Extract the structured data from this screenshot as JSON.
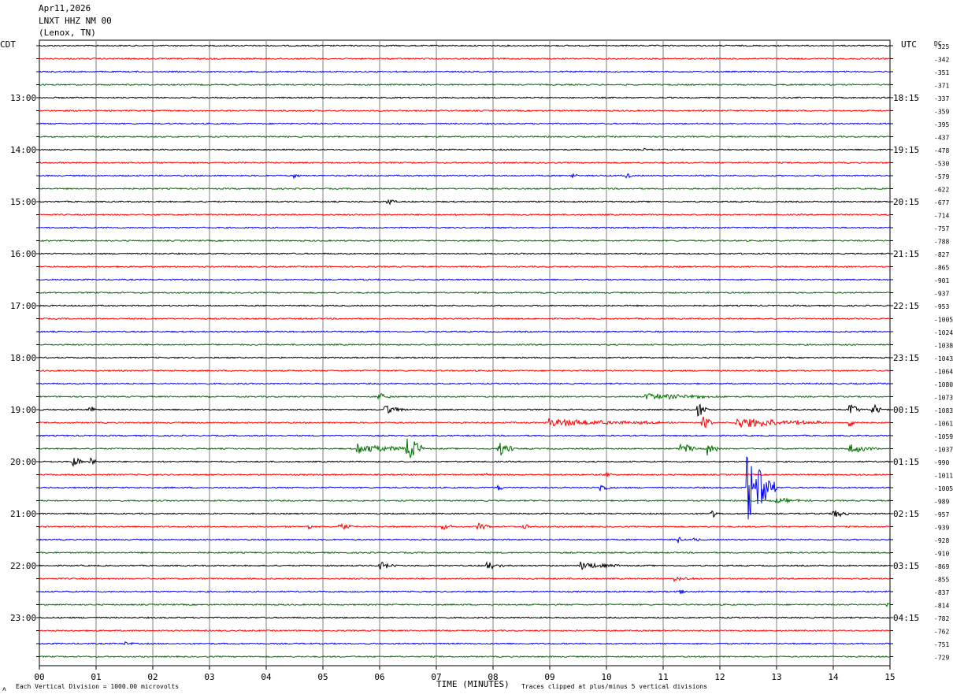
{
  "header": {
    "date": "Apr11,2026",
    "station": "LNXT HHZ NM 00",
    "location": "(Lenox, TN)"
  },
  "left_timezone": "CDT",
  "right_timezone": "UTC",
  "dc_label": "DC",
  "footer": {
    "scale_note": "Each Vertical Division = 1000.00 microvolts",
    "clip_note": "Traces clipped at plus/minus 5 vertical divisions",
    "marker": "ʌ"
  },
  "trace_colors": [
    "#000000",
    "#ff0000",
    "#0000ff",
    "#007000"
  ],
  "chart_data": {
    "type": "line",
    "xlabel": "TIME (MINUTES)",
    "x_ticks": [
      "00",
      "01",
      "02",
      "03",
      "04",
      "05",
      "06",
      "07",
      "08",
      "09",
      "10",
      "11",
      "12",
      "13",
      "14",
      "15"
    ],
    "xlim": [
      0,
      15
    ],
    "left_time_labels": [
      {
        "row": 4,
        "label": "13:00"
      },
      {
        "row": 8,
        "label": "14:00"
      },
      {
        "row": 12,
        "label": "15:00"
      },
      {
        "row": 16,
        "label": "16:00"
      },
      {
        "row": 20,
        "label": "17:00"
      },
      {
        "row": 24,
        "label": "18:00"
      },
      {
        "row": 28,
        "label": "19:00"
      },
      {
        "row": 32,
        "label": "20:00"
      },
      {
        "row": 36,
        "label": "21:00"
      },
      {
        "row": 40,
        "label": "22:00"
      },
      {
        "row": 44,
        "label": "23:00"
      }
    ],
    "right_time_labels": [
      {
        "row": 4,
        "label": "18:15"
      },
      {
        "row": 8,
        "label": "19:15"
      },
      {
        "row": 12,
        "label": "20:15"
      },
      {
        "row": 16,
        "label": "21:15"
      },
      {
        "row": 20,
        "label": "22:15"
      },
      {
        "row": 24,
        "label": "23:15"
      },
      {
        "row": 28,
        "label": "00:15"
      },
      {
        "row": 32,
        "label": "01:15"
      },
      {
        "row": 36,
        "label": "02:15"
      },
      {
        "row": 40,
        "label": "03:15"
      },
      {
        "row": 44,
        "label": "04:15"
      }
    ],
    "dc_offsets": [
      "-325",
      "-342",
      "-351",
      "-371",
      "-337",
      "-359",
      "-395",
      "-437",
      "-478",
      "-530",
      "-579",
      "-622",
      "-677",
      "-714",
      "-757",
      "-788",
      "-827",
      "-865",
      "-901",
      "-937",
      "-953",
      "-1005",
      "-1024",
      "-1038",
      "-1043",
      "-1064",
      "-1080",
      "-1073",
      "-1083",
      "-1061",
      "-1059",
      "-1037",
      "-990",
      "-1011",
      "-1005",
      "-989",
      "-957",
      "-939",
      "-928",
      "-910",
      "-869",
      "-855",
      "-837",
      "-814",
      "-782",
      "-762",
      "-751",
      "-729"
    ],
    "events": [
      {
        "row": 10,
        "minute": 4.5,
        "amp": 3,
        "dur": 0.1
      },
      {
        "row": 10,
        "minute": 9.4,
        "amp": 3,
        "dur": 0.1
      },
      {
        "row": 10,
        "minute": 10.35,
        "amp": 4,
        "dur": 0.1
      },
      {
        "row": 8,
        "minute": 10.65,
        "amp": 2,
        "dur": 0.05
      },
      {
        "row": 12,
        "minute": 6.15,
        "amp": 4,
        "dur": 0.15
      },
      {
        "row": 27,
        "minute": 6.0,
        "amp": 5,
        "dur": 0.2
      },
      {
        "row": 27,
        "minute": 10.7,
        "amp": 4,
        "dur": 1.5
      },
      {
        "row": 28,
        "minute": 0.9,
        "amp": 4,
        "dur": 0.1
      },
      {
        "row": 28,
        "minute": 6.1,
        "amp": 6,
        "dur": 0.4
      },
      {
        "row": 28,
        "minute": 11.6,
        "amp": 9,
        "dur": 0.2
      },
      {
        "row": 28,
        "minute": 14.3,
        "amp": 10,
        "dur": 0.2
      },
      {
        "row": 28,
        "minute": 14.7,
        "amp": 8,
        "dur": 0.15
      },
      {
        "row": 29,
        "minute": 9.0,
        "amp": 5,
        "dur": 2.2
      },
      {
        "row": 29,
        "minute": 11.7,
        "amp": 8,
        "dur": 0.2
      },
      {
        "row": 29,
        "minute": 12.3,
        "amp": 7,
        "dur": 1.6
      },
      {
        "row": 29,
        "minute": 14.3,
        "amp": 5,
        "dur": 0.2
      },
      {
        "row": 31,
        "minute": 5.6,
        "amp": 6,
        "dur": 1.2
      },
      {
        "row": 31,
        "minute": 6.5,
        "amp": 14,
        "dur": 0.3
      },
      {
        "row": 31,
        "minute": 8.1,
        "amp": 9,
        "dur": 0.3
      },
      {
        "row": 31,
        "minute": 11.3,
        "amp": 7,
        "dur": 0.3
      },
      {
        "row": 31,
        "minute": 11.8,
        "amp": 10,
        "dur": 0.2
      },
      {
        "row": 31,
        "minute": 14.3,
        "amp": 6,
        "dur": 0.5
      },
      {
        "row": 32,
        "minute": 0.6,
        "amp": 6,
        "dur": 0.2
      },
      {
        "row": 32,
        "minute": 0.9,
        "amp": 5,
        "dur": 0.1
      },
      {
        "row": 33,
        "minute": 7.85,
        "amp": 5,
        "dur": 0.08
      },
      {
        "row": 33,
        "minute": 10.0,
        "amp": 3,
        "dur": 0.1
      },
      {
        "row": 34,
        "minute": 8.1,
        "amp": 4,
        "dur": 0.1
      },
      {
        "row": 34,
        "minute": 9.9,
        "amp": 5,
        "dur": 0.2
      },
      {
        "row": 34,
        "minute": 12.5,
        "amp": 45,
        "dur": 0.5
      },
      {
        "row": 35,
        "minute": 13.0,
        "amp": 3,
        "dur": 0.6
      },
      {
        "row": 36,
        "minute": 11.85,
        "amp": 6,
        "dur": 0.1
      },
      {
        "row": 36,
        "minute": 14.0,
        "amp": 5,
        "dur": 0.3
      },
      {
        "row": 37,
        "minute": 4.75,
        "amp": 7,
        "dur": 0.08
      },
      {
        "row": 37,
        "minute": 5.3,
        "amp": 4,
        "dur": 0.3
      },
      {
        "row": 37,
        "minute": 7.1,
        "amp": 4,
        "dur": 0.2
      },
      {
        "row": 37,
        "minute": 7.75,
        "amp": 4,
        "dur": 0.2
      },
      {
        "row": 37,
        "minute": 8.55,
        "amp": 3,
        "dur": 0.15
      },
      {
        "row": 38,
        "minute": 11.25,
        "amp": 5,
        "dur": 0.1
      },
      {
        "row": 38,
        "minute": 11.55,
        "amp": 3,
        "dur": 0.1
      },
      {
        "row": 40,
        "minute": 6.0,
        "amp": 5,
        "dur": 0.3
      },
      {
        "row": 40,
        "minute": 7.9,
        "amp": 5,
        "dur": 0.3
      },
      {
        "row": 40,
        "minute": 9.55,
        "amp": 5,
        "dur": 0.7
      },
      {
        "row": 41,
        "minute": 11.2,
        "amp": 3,
        "dur": 0.4
      },
      {
        "row": 42,
        "minute": 11.3,
        "amp": 3,
        "dur": 0.1
      },
      {
        "row": 43,
        "minute": 14.95,
        "amp": 3,
        "dur": 0.1
      },
      {
        "row": 46,
        "minute": 1.5,
        "amp": 2,
        "dur": 0.2
      }
    ]
  }
}
